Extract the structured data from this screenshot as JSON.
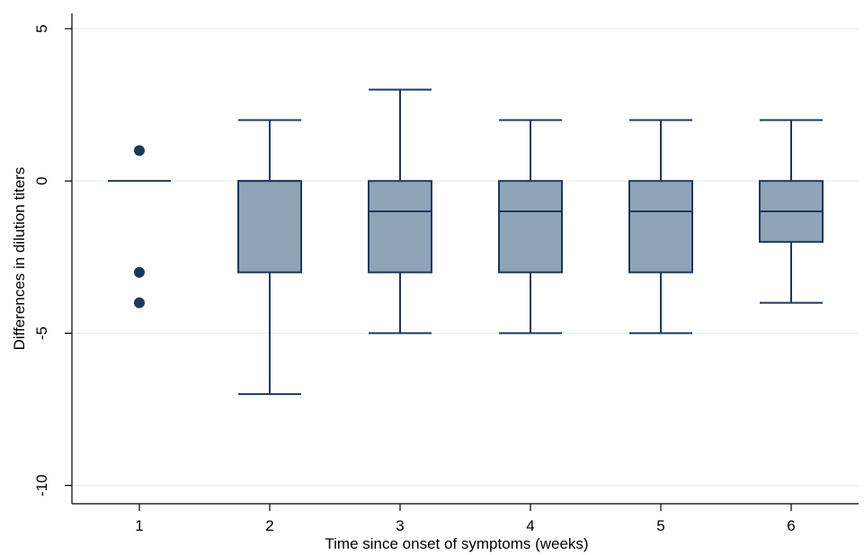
{
  "chart_data": {
    "type": "boxplot",
    "title": "",
    "xlabel": "Time since onset of symptoms (weeks)",
    "ylabel": "Differences in dilution titers",
    "ylim": [
      -10.6,
      5.5
    ],
    "yticks": [
      5,
      0,
      -5,
      -10
    ],
    "yticklabels": [
      "5",
      "0",
      "-5",
      "-10"
    ],
    "grid": true,
    "categories": [
      "1",
      "2",
      "3",
      "4",
      "5",
      "6"
    ],
    "boxes": [
      {
        "category": "1",
        "whisker_low": 0,
        "q1": 0,
        "median": 0,
        "q3": 0,
        "whisker_high": 0,
        "outliers": [
          1,
          -3,
          -4
        ]
      },
      {
        "category": "2",
        "whisker_low": -7,
        "q1": -3,
        "median": 0,
        "q3": 0,
        "whisker_high": 2,
        "outliers": []
      },
      {
        "category": "3",
        "whisker_low": -5,
        "q1": -3,
        "median": -1,
        "q3": 0,
        "whisker_high": 3,
        "outliers": []
      },
      {
        "category": "4",
        "whisker_low": -5,
        "q1": -3,
        "median": -1,
        "q3": 0,
        "whisker_high": 2,
        "outliers": []
      },
      {
        "category": "5",
        "whisker_low": -5,
        "q1": -3,
        "median": -1,
        "q3": 0,
        "whisker_high": 2,
        "outliers": []
      },
      {
        "category": "6",
        "whisker_low": -4,
        "q1": -2,
        "median": -1,
        "q3": 0,
        "whisker_high": 2,
        "outliers": []
      }
    ],
    "colors": {
      "box_fill": "#90a4b8",
      "line": "#1a3a5c",
      "outlier": "#1a3a5c",
      "grid": "#e6eef2",
      "axis": "#000000"
    }
  }
}
